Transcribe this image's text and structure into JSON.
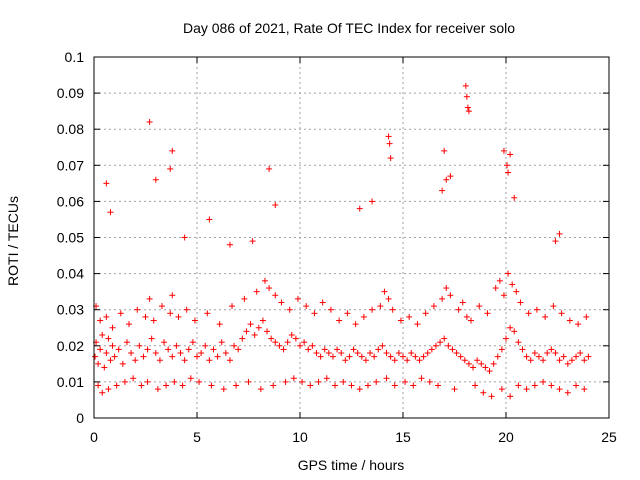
{
  "chart_data": {
    "type": "scatter",
    "title": "Day 086 of 2021, Rate Of TEC Index for receiver solo",
    "xlabel": "GPS time / hours",
    "ylabel": "ROTI / TECUs",
    "xlim": [
      0,
      25
    ],
    "ylim": [
      0,
      0.1
    ],
    "xticks": [
      0,
      5,
      10,
      15,
      20,
      25
    ],
    "xtick_labels": [
      "0",
      "5",
      "10",
      "15",
      "20",
      "25"
    ],
    "yticks": [
      0,
      0.01,
      0.02,
      0.03,
      0.04,
      0.05,
      0.06,
      0.07,
      0.08,
      0.09,
      0.1
    ],
    "ytick_labels": [
      "0",
      "0.01",
      "0.02",
      "0.03",
      "0.04",
      "0.05",
      "0.06",
      "0.07",
      "0.08",
      "0.09",
      "0.1"
    ],
    "grid": true,
    "marker": "+",
    "color": "#ff0000",
    "series": [
      {
        "name": "ROTI",
        "x": [
          0.05,
          0.1,
          0.2,
          0.3,
          0.4,
          0.5,
          0.6,
          0.7,
          0.8,
          0.9,
          1.0,
          1.2,
          1.4,
          1.6,
          1.8,
          2.0,
          2.2,
          2.4,
          2.6,
          2.8,
          3.0,
          3.2,
          3.4,
          3.6,
          3.8,
          4.0,
          4.2,
          4.4,
          4.6,
          4.8,
          5.0,
          5.2,
          5.4,
          5.6,
          5.8,
          6.0,
          6.2,
          6.4,
          6.6,
          6.8,
          7.0,
          7.2,
          7.4,
          7.6,
          7.8,
          8.0,
          8.2,
          8.4,
          8.6,
          8.8,
          9.0,
          9.2,
          9.4,
          9.6,
          9.8,
          10.0,
          10.2,
          10.4,
          10.6,
          10.8,
          11.0,
          11.2,
          11.4,
          11.6,
          11.8,
          12.0,
          12.2,
          12.4,
          12.6,
          12.8,
          13.0,
          13.2,
          13.4,
          13.6,
          13.8,
          14.0,
          14.2,
          14.4,
          14.6,
          14.8,
          15.0,
          15.2,
          15.4,
          15.6,
          15.8,
          16.0,
          16.2,
          16.4,
          16.6,
          16.8,
          17.0,
          17.2,
          17.4,
          17.6,
          17.8,
          18.0,
          18.2,
          18.4,
          18.6,
          18.8,
          19.0,
          19.2,
          19.4,
          19.6,
          19.8,
          20.0,
          20.2,
          20.4,
          20.6,
          20.8,
          21.0,
          21.2,
          21.4,
          21.6,
          21.8,
          22.0,
          22.2,
          22.4,
          22.6,
          22.8,
          23.0,
          23.2,
          23.4,
          23.6,
          23.8,
          24.0,
          0.1,
          0.3,
          0.6,
          0.9,
          1.3,
          1.7,
          2.1,
          2.5,
          2.7,
          2.9,
          3.3,
          3.7,
          3.8,
          4.1,
          4.5,
          4.9,
          5.5,
          6.1,
          6.7,
          7.3,
          7.9,
          8.3,
          8.5,
          8.8,
          9.1,
          9.5,
          9.9,
          10.3,
          10.7,
          11.1,
          11.5,
          11.9,
          12.3,
          12.7,
          13.1,
          13.5,
          13.9,
          14.1,
          14.3,
          14.5,
          14.9,
          15.3,
          15.7,
          16.1,
          16.5,
          16.9,
          17.1,
          17.3,
          17.7,
          17.9,
          18.1,
          18.3,
          18.7,
          19.1,
          19.5,
          19.7,
          19.9,
          20.1,
          20.3,
          20.5,
          20.7,
          21.1,
          21.5,
          21.9,
          22.3,
          22.7,
          23.1,
          23.5,
          23.9,
          0.2,
          0.4,
          0.7,
          1.1,
          1.5,
          1.9,
          2.3,
          2.6,
          3.1,
          3.5,
          3.9,
          4.3,
          4.7,
          5.1,
          5.7,
          6.3,
          6.9,
          7.5,
          8.1,
          8.7,
          9.3,
          9.7,
          10.1,
          10.5,
          10.9,
          11.3,
          11.7,
          12.1,
          12.5,
          12.9,
          13.3,
          13.7,
          14.2,
          14.6,
          15.1,
          15.5,
          15.9,
          16.3,
          16.7,
          17.5,
          18.5,
          18.9,
          19.3,
          19.8,
          20.2,
          20.6,
          21.0,
          21.4,
          21.8,
          22.2,
          22.6,
          23.0,
          23.4,
          23.8,
          0.6,
          0.8,
          2.7,
          3.0,
          3.7,
          3.8,
          5.6,
          8.5,
          8.8,
          14.3,
          14.35,
          14.4,
          17.0,
          17.1,
          18.05,
          18.1,
          18.15,
          18.2,
          19.9,
          20.05,
          20.1,
          20.2,
          20.4,
          22.6,
          22.4,
          16.9,
          17.3,
          12.9,
          13.5,
          7.7,
          6.6,
          4.4
        ],
        "y": [
          0.017,
          0.021,
          0.015,
          0.019,
          0.023,
          0.014,
          0.018,
          0.022,
          0.016,
          0.02,
          0.017,
          0.019,
          0.015,
          0.021,
          0.018,
          0.016,
          0.02,
          0.017,
          0.019,
          0.022,
          0.018,
          0.016,
          0.021,
          0.019,
          0.017,
          0.02,
          0.018,
          0.016,
          0.019,
          0.021,
          0.017,
          0.018,
          0.02,
          0.016,
          0.019,
          0.017,
          0.021,
          0.018,
          0.016,
          0.02,
          0.019,
          0.022,
          0.024,
          0.026,
          0.023,
          0.025,
          0.027,
          0.024,
          0.022,
          0.021,
          0.02,
          0.019,
          0.021,
          0.023,
          0.022,
          0.02,
          0.021,
          0.019,
          0.02,
          0.018,
          0.017,
          0.019,
          0.018,
          0.017,
          0.019,
          0.018,
          0.016,
          0.017,
          0.019,
          0.018,
          0.017,
          0.016,
          0.018,
          0.017,
          0.019,
          0.02,
          0.018,
          0.017,
          0.016,
          0.018,
          0.017,
          0.016,
          0.018,
          0.017,
          0.016,
          0.017,
          0.018,
          0.019,
          0.02,
          0.021,
          0.022,
          0.02,
          0.019,
          0.018,
          0.017,
          0.016,
          0.015,
          0.014,
          0.016,
          0.015,
          0.014,
          0.013,
          0.015,
          0.017,
          0.019,
          0.022,
          0.025,
          0.024,
          0.021,
          0.019,
          0.017,
          0.016,
          0.018,
          0.017,
          0.016,
          0.018,
          0.019,
          0.018,
          0.016,
          0.017,
          0.015,
          0.016,
          0.017,
          0.018,
          0.016,
          0.017,
          0.031,
          0.027,
          0.028,
          0.025,
          0.029,
          0.026,
          0.03,
          0.028,
          0.033,
          0.027,
          0.031,
          0.029,
          0.034,
          0.028,
          0.03,
          0.027,
          0.029,
          0.026,
          0.031,
          0.033,
          0.035,
          0.038,
          0.036,
          0.034,
          0.032,
          0.03,
          0.033,
          0.031,
          0.029,
          0.032,
          0.03,
          0.027,
          0.029,
          0.026,
          0.028,
          0.03,
          0.031,
          0.035,
          0.033,
          0.03,
          0.027,
          0.028,
          0.026,
          0.029,
          0.031,
          0.033,
          0.036,
          0.034,
          0.03,
          0.032,
          0.028,
          0.027,
          0.031,
          0.029,
          0.036,
          0.038,
          0.034,
          0.04,
          0.037,
          0.035,
          0.032,
          0.029,
          0.03,
          0.028,
          0.031,
          0.029,
          0.027,
          0.026,
          0.028,
          0.009,
          0.007,
          0.008,
          0.009,
          0.01,
          0.011,
          0.009,
          0.01,
          0.008,
          0.009,
          0.01,
          0.009,
          0.011,
          0.01,
          0.009,
          0.008,
          0.009,
          0.01,
          0.008,
          0.009,
          0.01,
          0.011,
          0.01,
          0.009,
          0.01,
          0.011,
          0.009,
          0.01,
          0.009,
          0.008,
          0.009,
          0.01,
          0.011,
          0.009,
          0.01,
          0.009,
          0.011,
          0.01,
          0.009,
          0.008,
          0.009,
          0.007,
          0.006,
          0.008,
          0.006,
          0.009,
          0.008,
          0.009,
          0.01,
          0.009,
          0.008,
          0.007,
          0.009,
          0.008,
          0.065,
          0.057,
          0.082,
          0.066,
          0.069,
          0.074,
          0.055,
          0.069,
          0.059,
          0.078,
          0.076,
          0.072,
          0.074,
          0.066,
          0.092,
          0.089,
          0.086,
          0.085,
          0.074,
          0.07,
          0.068,
          0.073,
          0.061,
          0.051,
          0.049,
          0.063,
          0.067,
          0.058,
          0.06,
          0.049,
          0.048,
          0.05
        ]
      }
    ]
  }
}
